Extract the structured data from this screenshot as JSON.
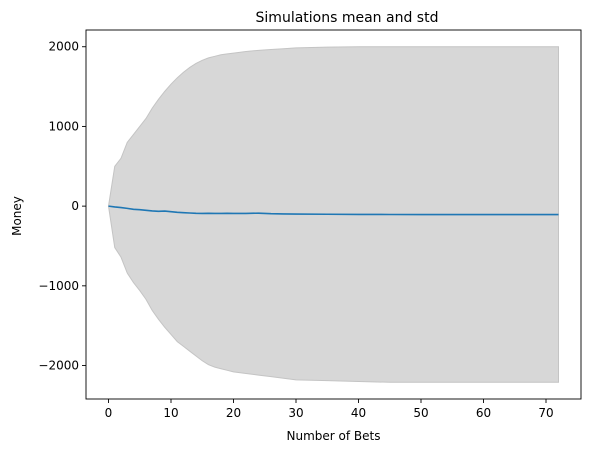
{
  "chart_data": {
    "type": "area",
    "title": "Simulations mean and std",
    "xlabel": "Number of Bets",
    "ylabel": "Money",
    "xlim": [
      -3.6,
      75.6
    ],
    "ylim": [
      -2420,
      2210
    ],
    "xticks": [
      0,
      10,
      20,
      30,
      40,
      50,
      60,
      70
    ],
    "yticks": [
      -2000,
      -1000,
      0,
      1000,
      2000
    ],
    "ytick_labels": [
      "−2000",
      "−1000",
      "0",
      "1000",
      "2000"
    ],
    "grid": false,
    "colors": {
      "mean_line": "#1f77b4",
      "std_band": "#d7d7d7",
      "std_band_edge": "#c4c4c4",
      "axes": "#000000"
    },
    "x": [
      0,
      1,
      2,
      3,
      4,
      5,
      6,
      7,
      8,
      9,
      10,
      11,
      12,
      13,
      14,
      15,
      16,
      17,
      18,
      19,
      20,
      22,
      24,
      26,
      28,
      30,
      35,
      40,
      45,
      50,
      55,
      60,
      65,
      70,
      72
    ],
    "series": [
      {
        "role": "mean",
        "values": [
          0,
          -10,
          -18,
          -28,
          -40,
          -45,
          -52,
          -60,
          -65,
          -62,
          -70,
          -78,
          -82,
          -86,
          -90,
          -92,
          -90,
          -92,
          -92,
          -90,
          -92,
          -92,
          -88,
          -95,
          -98,
          -100,
          -102,
          -104,
          -105,
          -106,
          -106,
          -106,
          -106,
          -106,
          -106
        ]
      },
      {
        "role": "upper",
        "values": [
          0,
          500,
          600,
          800,
          900,
          1000,
          1100,
          1230,
          1340,
          1440,
          1530,
          1610,
          1680,
          1740,
          1790,
          1830,
          1860,
          1880,
          1900,
          1910,
          1920,
          1940,
          1955,
          1965,
          1975,
          1985,
          1995,
          2000,
          2000,
          2000,
          2000,
          2000,
          2000,
          2000,
          2000
        ]
      },
      {
        "role": "lower",
        "values": [
          0,
          -520,
          -640,
          -840,
          -960,
          -1060,
          -1170,
          -1310,
          -1420,
          -1520,
          -1610,
          -1700,
          -1760,
          -1820,
          -1880,
          -1940,
          -1990,
          -2020,
          -2040,
          -2060,
          -2080,
          -2100,
          -2120,
          -2140,
          -2160,
          -2180,
          -2190,
          -2200,
          -2210,
          -2210,
          -2210,
          -2210,
          -2210,
          -2210,
          -2210
        ]
      }
    ]
  }
}
